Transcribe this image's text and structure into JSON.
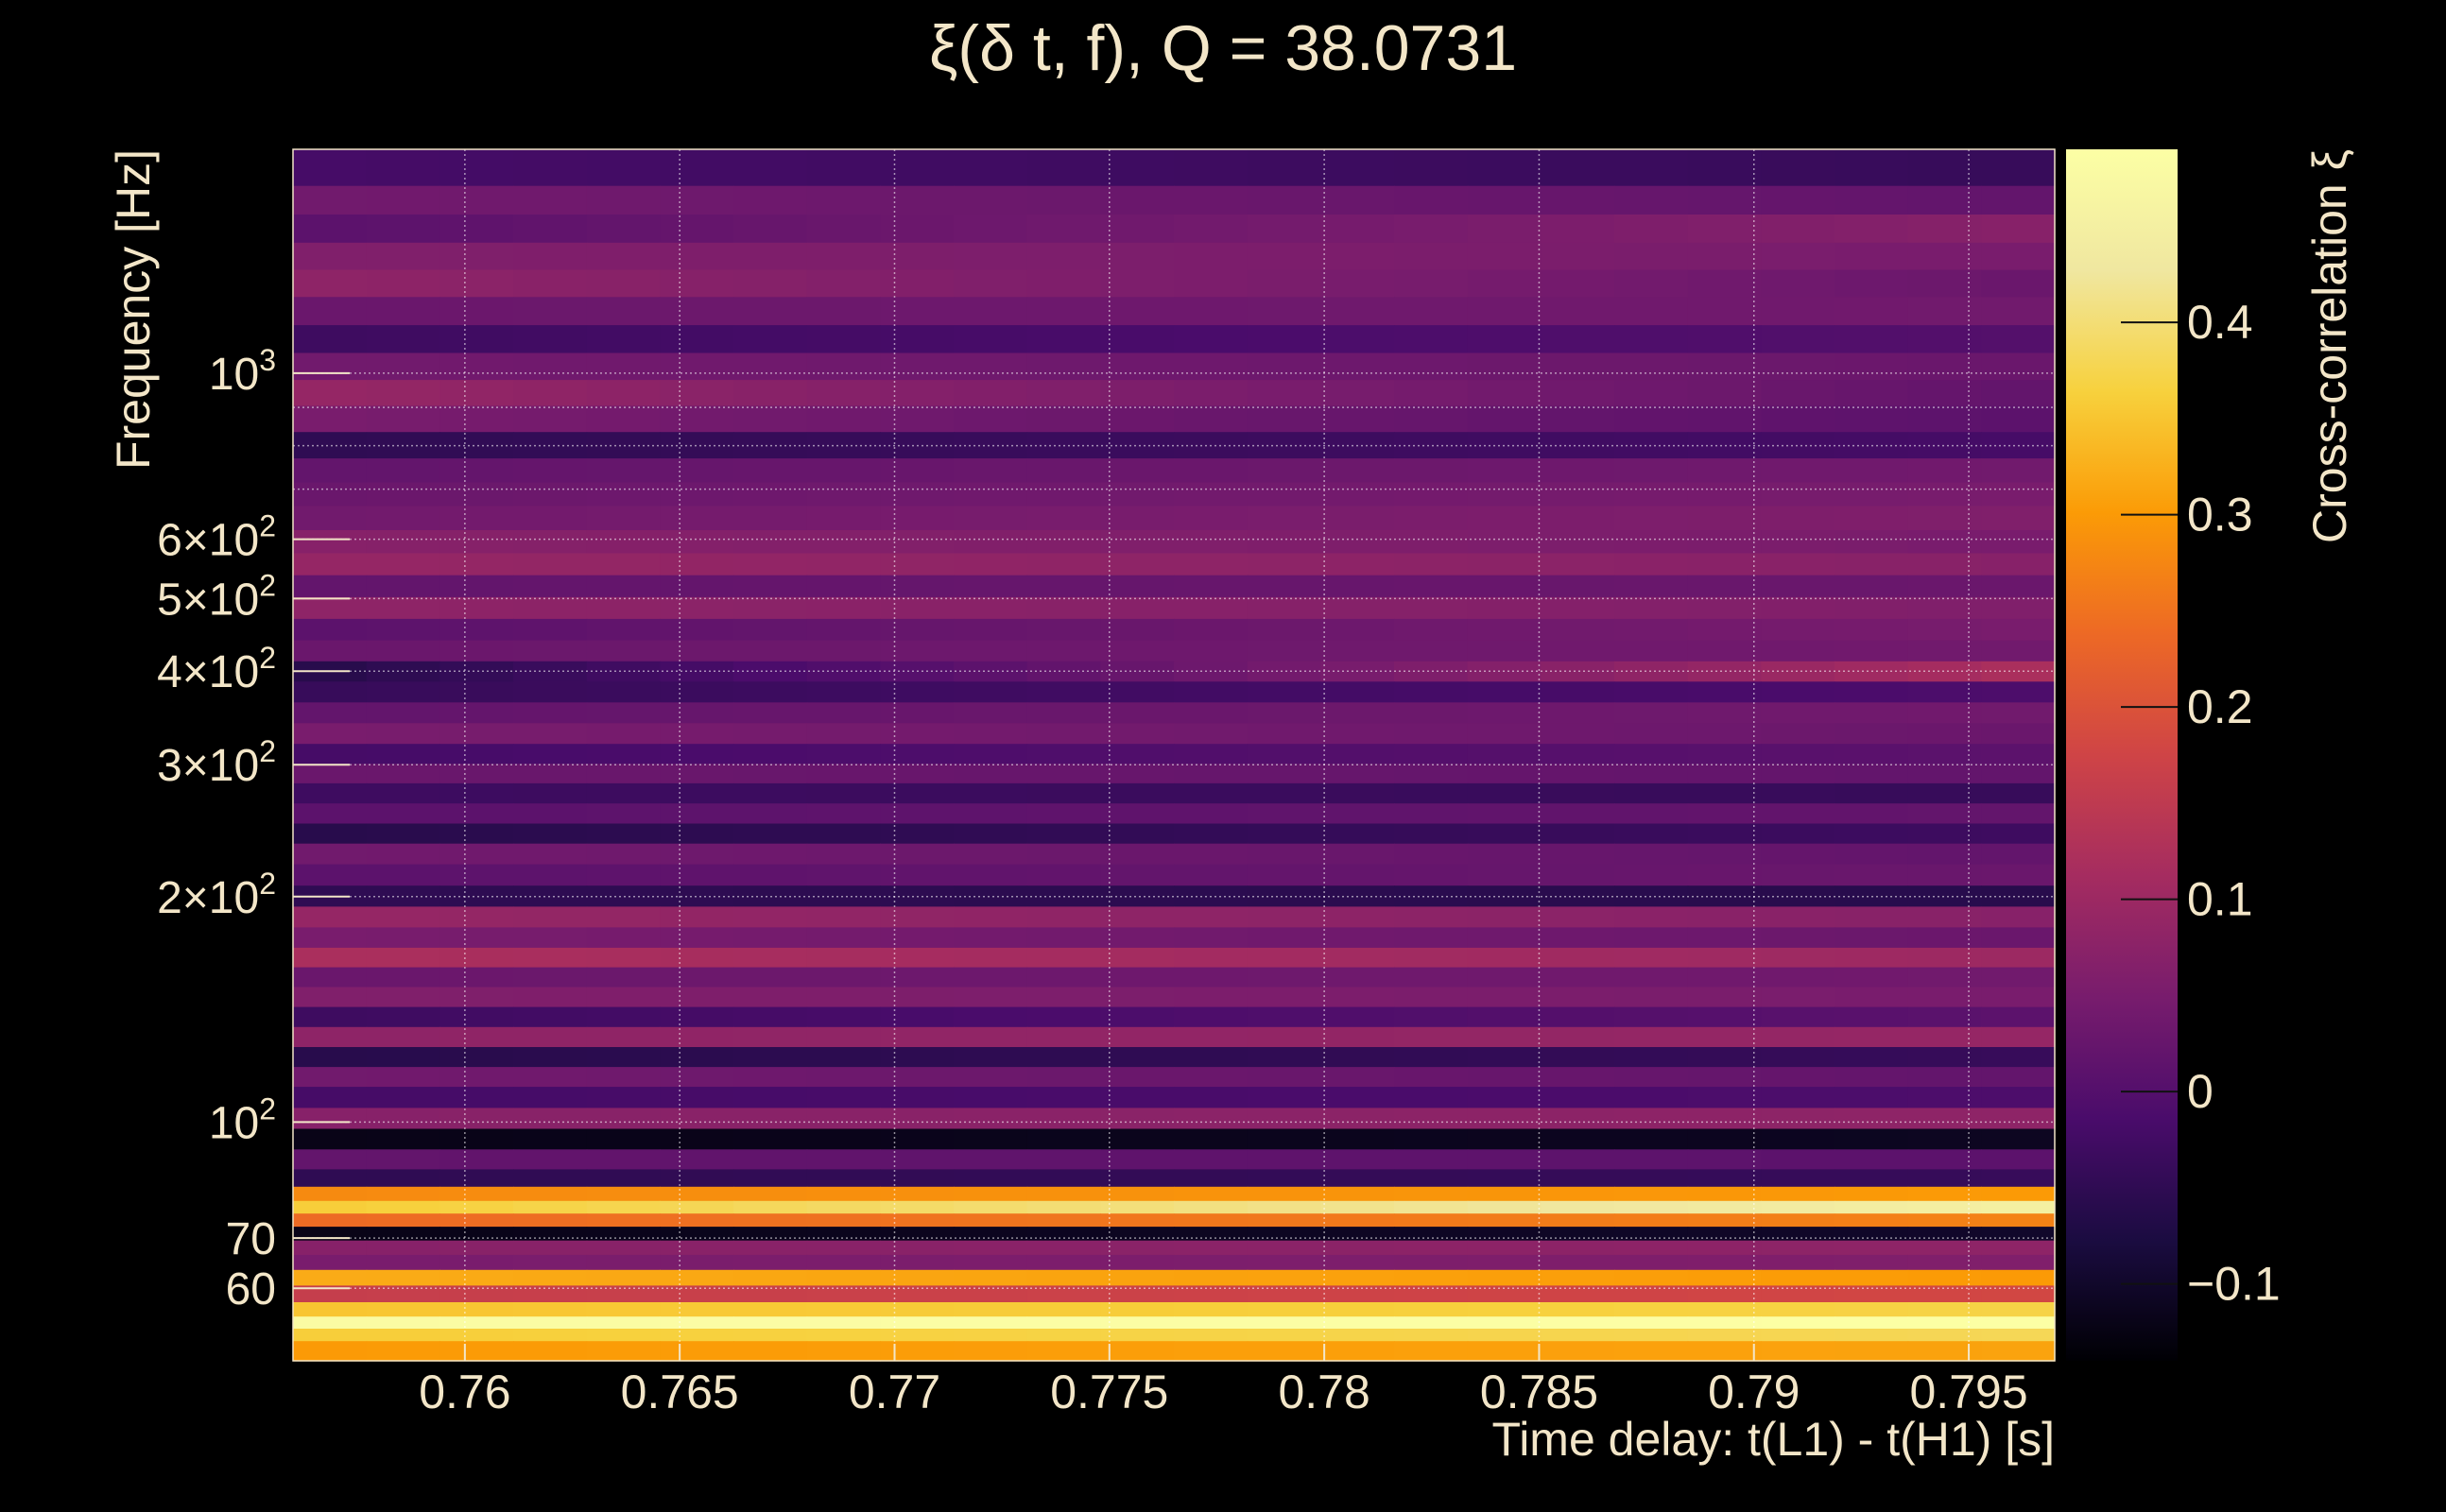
{
  "chart_data": {
    "type": "heatmap",
    "title": "ξ(δ t, f), Q = 38.0731",
    "xlabel": "Time delay: t(L1) - t(H1) [s]",
    "ylabel": "Frequency [Hz]",
    "colorbar_label": "Cross-correlation ξ",
    "colormap": "inferno",
    "xlim": [
      0.756,
      0.797
    ],
    "ylim": [
      48,
      1990
    ],
    "y_scale": "log",
    "clim": [
      -0.14,
      0.49
    ],
    "grid": true,
    "x_ticks": [
      {
        "value": 0.76,
        "label": "0.76"
      },
      {
        "value": 0.765,
        "label": "0.765"
      },
      {
        "value": 0.77,
        "label": "0.77"
      },
      {
        "value": 0.775,
        "label": "0.775"
      },
      {
        "value": 0.78,
        "label": "0.78"
      },
      {
        "value": 0.785,
        "label": "0.785"
      },
      {
        "value": 0.79,
        "label": "0.79"
      },
      {
        "value": 0.795,
        "label": "0.795"
      }
    ],
    "y_ticks": [
      {
        "value": 1000,
        "label": "10",
        "sup": "3"
      },
      {
        "value": 600,
        "label": "6×10",
        "sup": "2"
      },
      {
        "value": 500,
        "label": "5×10",
        "sup": "2"
      },
      {
        "value": 400,
        "label": "4×10",
        "sup": "2"
      },
      {
        "value": 300,
        "label": "3×10",
        "sup": "2"
      },
      {
        "value": 200,
        "label": "2×10",
        "sup": "2"
      },
      {
        "value": 100,
        "label": "10",
        "sup": "2"
      },
      {
        "value": 70,
        "label": "70",
        "sup": ""
      },
      {
        "value": 60,
        "label": "60",
        "sup": ""
      }
    ],
    "colorbar_ticks": [
      {
        "value": 0.4,
        "label": "0.4"
      },
      {
        "value": 0.3,
        "label": "0.3"
      },
      {
        "value": 0.2,
        "label": "0.2"
      },
      {
        "value": 0.1,
        "label": "0.1"
      },
      {
        "value": 0,
        "label": "0"
      },
      {
        "value": -0.1,
        "label": "−0.1"
      }
    ],
    "bands": [
      {
        "f": 1860,
        "v": [
          -0.02,
          -0.04
        ]
      },
      {
        "f": 1700,
        "v": [
          0.04,
          0.02
        ]
      },
      {
        "f": 1560,
        "v": [
          0.01,
          0.07
        ]
      },
      {
        "f": 1430,
        "v": [
          0.06,
          0.05
        ]
      },
      {
        "f": 1320,
        "v": [
          0.08,
          0.03
        ]
      },
      {
        "f": 1210,
        "v": [
          0.03,
          0.04
        ]
      },
      {
        "f": 1110,
        "v": [
          -0.03,
          0.0
        ]
      },
      {
        "f": 1020,
        "v": [
          0.04,
          0.03
        ]
      },
      {
        "f": 940,
        "v": [
          0.09,
          0.02
        ]
      },
      {
        "f": 870,
        "v": [
          0.05,
          0.01
        ]
      },
      {
        "f": 800,
        "v": [
          -0.05,
          -0.02
        ]
      },
      {
        "f": 740,
        "v": [
          0.02,
          0.04
        ]
      },
      {
        "f": 690,
        "v": [
          0.03,
          0.05
        ]
      },
      {
        "f": 640,
        "v": [
          0.04,
          0.06
        ]
      },
      {
        "f": 595,
        "v": [
          0.07,
          0.05
        ]
      },
      {
        "f": 555,
        "v": [
          0.09,
          0.07
        ]
      },
      {
        "f": 520,
        "v": [
          0.02,
          0.03
        ]
      },
      {
        "f": 485,
        "v": [
          0.08,
          0.06
        ]
      },
      {
        "f": 455,
        "v": [
          0.01,
          0.05
        ]
      },
      {
        "f": 425,
        "v": [
          0.03,
          0.04
        ]
      },
      {
        "f": 400,
        "v": [
          -0.06,
          0.12
        ]
      },
      {
        "f": 375,
        "v": [
          -0.04,
          -0.01
        ]
      },
      {
        "f": 352,
        "v": [
          0.02,
          0.04
        ]
      },
      {
        "f": 330,
        "v": [
          0.05,
          0.03
        ]
      },
      {
        "f": 310,
        "v": [
          -0.02,
          0.01
        ]
      },
      {
        "f": 292,
        "v": [
          0.03,
          0.02
        ]
      },
      {
        "f": 275,
        "v": [
          -0.03,
          -0.04
        ]
      },
      {
        "f": 258,
        "v": [
          0.01,
          0.02
        ]
      },
      {
        "f": 243,
        "v": [
          -0.06,
          -0.03
        ]
      },
      {
        "f": 228,
        "v": [
          0.04,
          0.02
        ]
      },
      {
        "f": 214,
        "v": [
          0.01,
          0.03
        ]
      },
      {
        "f": 200,
        "v": [
          -0.05,
          -0.06
        ]
      },
      {
        "f": 188,
        "v": [
          0.09,
          0.07
        ]
      },
      {
        "f": 176,
        "v": [
          0.05,
          0.03
        ]
      },
      {
        "f": 166,
        "v": [
          0.12,
          0.1
        ]
      },
      {
        "f": 156,
        "v": [
          0.03,
          0.04
        ]
      },
      {
        "f": 147,
        "v": [
          0.06,
          0.05
        ]
      },
      {
        "f": 138,
        "v": [
          -0.03,
          0.01
        ]
      },
      {
        "f": 130,
        "v": [
          0.08,
          0.09
        ]
      },
      {
        "f": 122,
        "v": [
          -0.06,
          -0.04
        ]
      },
      {
        "f": 115,
        "v": [
          0.04,
          0.02
        ]
      },
      {
        "f": 108,
        "v": [
          -0.02,
          -0.01
        ]
      },
      {
        "f": 101,
        "v": [
          0.07,
          0.08
        ]
      },
      {
        "f": 95,
        "v": [
          -0.12,
          -0.11
        ]
      },
      {
        "f": 89,
        "v": [
          0.02,
          0.01
        ]
      },
      {
        "f": 84,
        "v": [
          -0.05,
          -0.04
        ]
      },
      {
        "f": 80,
        "v": [
          0.28,
          0.3
        ]
      },
      {
        "f": 77,
        "v": [
          0.36,
          0.45
        ]
      },
      {
        "f": 74,
        "v": [
          0.24,
          0.27
        ]
      },
      {
        "f": 71,
        "v": [
          -0.12,
          -0.1
        ]
      },
      {
        "f": 68,
        "v": [
          0.07,
          0.08
        ]
      },
      {
        "f": 65,
        "v": [
          0.05,
          0.06
        ]
      },
      {
        "f": 62,
        "v": [
          0.32,
          0.3
        ]
      },
      {
        "f": 59,
        "v": [
          0.16,
          0.18
        ]
      },
      {
        "f": 56,
        "v": [
          0.35,
          0.37
        ]
      },
      {
        "f": 54,
        "v": [
          0.48,
          0.49
        ]
      },
      {
        "f": 52,
        "v": [
          0.36,
          0.38
        ]
      },
      {
        "f": 50,
        "v": [
          0.3,
          0.31
        ]
      }
    ]
  }
}
